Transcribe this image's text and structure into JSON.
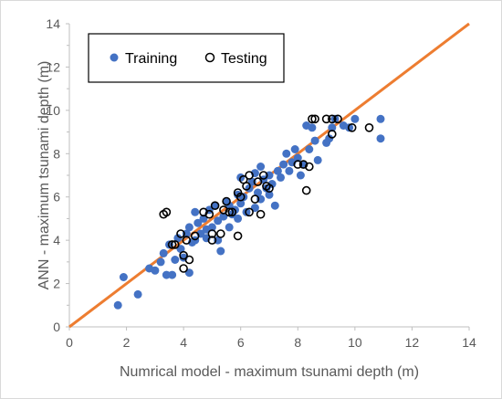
{
  "chart_data": {
    "type": "scatter",
    "title": "",
    "xlabel": "Numrical model - maximum tsunami depth (m)",
    "ylabel": "ANN - maximum tsunami depth (m)",
    "xlim": [
      0,
      14
    ],
    "ylim": [
      0,
      14
    ],
    "x_ticks": [
      "0",
      "2",
      "4",
      "6",
      "8",
      "10",
      "12",
      "14"
    ],
    "y_ticks": [
      "0",
      "2",
      "4",
      "6",
      "8",
      "10",
      "12",
      "14"
    ],
    "grid": false,
    "legend_position": "top-left",
    "reference_line": {
      "x": [
        0,
        14
      ],
      "y": [
        0,
        14
      ],
      "color": "#ED7D31"
    },
    "series": [
      {
        "name": "Training",
        "marker": "filled-circle",
        "color": "#4472C4",
        "points": [
          [
            1.7,
            1.0
          ],
          [
            1.9,
            2.3
          ],
          [
            2.4,
            1.5
          ],
          [
            2.8,
            2.7
          ],
          [
            3.0,
            2.6
          ],
          [
            3.2,
            3.0
          ],
          [
            3.3,
            3.4
          ],
          [
            3.4,
            2.4
          ],
          [
            3.5,
            3.8
          ],
          [
            3.6,
            2.4
          ],
          [
            3.7,
            3.1
          ],
          [
            3.8,
            4.1
          ],
          [
            3.9,
            3.6
          ],
          [
            4.0,
            3.2
          ],
          [
            4.1,
            4.3
          ],
          [
            4.2,
            4.6
          ],
          [
            4.2,
            2.5
          ],
          [
            4.3,
            3.9
          ],
          [
            4.4,
            4.0
          ],
          [
            4.5,
            4.8
          ],
          [
            4.6,
            4.3
          ],
          [
            4.7,
            5.0
          ],
          [
            4.8,
            4.1
          ],
          [
            4.9,
            5.4
          ],
          [
            5.0,
            4.6
          ],
          [
            5.1,
            5.6
          ],
          [
            5.2,
            4.9
          ],
          [
            5.3,
            3.5
          ],
          [
            5.4,
            5.1
          ],
          [
            5.5,
            5.8
          ],
          [
            5.6,
            4.6
          ],
          [
            5.6,
            5.6
          ],
          [
            5.7,
            5.2
          ],
          [
            5.8,
            5.4
          ],
          [
            5.9,
            6.1
          ],
          [
            5.9,
            5.0
          ],
          [
            6.0,
            5.7
          ],
          [
            6.1,
            6.0
          ],
          [
            6.2,
            5.3
          ],
          [
            6.3,
            6.4
          ],
          [
            6.4,
            6.7
          ],
          [
            6.5,
            5.5
          ],
          [
            6.5,
            7.1
          ],
          [
            6.6,
            6.2
          ],
          [
            6.7,
            5.9
          ],
          [
            6.8,
            6.8
          ],
          [
            6.9,
            6.4
          ],
          [
            7.0,
            7.0
          ],
          [
            7.1,
            6.6
          ],
          [
            7.2,
            5.6
          ],
          [
            7.3,
            7.2
          ],
          [
            7.4,
            6.9
          ],
          [
            7.5,
            7.5
          ],
          [
            7.6,
            8.0
          ],
          [
            7.7,
            7.2
          ],
          [
            7.8,
            7.6
          ],
          [
            7.9,
            8.2
          ],
          [
            8.0,
            7.8
          ],
          [
            8.1,
            7.0
          ],
          [
            8.2,
            7.5
          ],
          [
            8.3,
            9.3
          ],
          [
            8.4,
            8.2
          ],
          [
            8.5,
            9.2
          ],
          [
            8.6,
            8.6
          ],
          [
            8.7,
            7.7
          ],
          [
            9.0,
            8.5
          ],
          [
            9.1,
            8.7
          ],
          [
            9.2,
            9.2
          ],
          [
            9.3,
            9.6
          ],
          [
            9.6,
            9.3
          ],
          [
            9.8,
            9.2
          ],
          [
            10.0,
            9.6
          ],
          [
            10.9,
            9.6
          ],
          [
            10.9,
            8.7
          ],
          [
            4.4,
            5.3
          ],
          [
            5.2,
            4.0
          ],
          [
            6.0,
            6.9
          ],
          [
            6.7,
            7.4
          ],
          [
            7.0,
            6.1
          ],
          [
            4.8,
            4.5
          ]
        ]
      },
      {
        "name": "Testing",
        "marker": "hollow-circle",
        "color": "#000000",
        "points": [
          [
            3.3,
            5.2
          ],
          [
            3.4,
            5.3
          ],
          [
            3.6,
            3.8
          ],
          [
            3.7,
            3.8
          ],
          [
            3.9,
            4.3
          ],
          [
            4.0,
            3.3
          ],
          [
            4.0,
            2.7
          ],
          [
            4.1,
            4.0
          ],
          [
            4.2,
            3.1
          ],
          [
            4.4,
            4.2
          ],
          [
            4.7,
            5.3
          ],
          [
            5.0,
            4.3
          ],
          [
            5.0,
            4.0
          ],
          [
            5.1,
            5.6
          ],
          [
            5.3,
            4.3
          ],
          [
            5.4,
            5.4
          ],
          [
            5.5,
            5.8
          ],
          [
            5.6,
            5.3
          ],
          [
            5.7,
            5.3
          ],
          [
            5.9,
            4.2
          ],
          [
            5.9,
            6.2
          ],
          [
            6.0,
            6.0
          ],
          [
            6.1,
            6.8
          ],
          [
            6.2,
            6.5
          ],
          [
            6.3,
            7.0
          ],
          [
            6.3,
            5.3
          ],
          [
            6.5,
            5.9
          ],
          [
            6.6,
            6.7
          ],
          [
            6.7,
            5.2
          ],
          [
            6.9,
            6.5
          ],
          [
            7.0,
            6.4
          ],
          [
            8.0,
            7.5
          ],
          [
            8.2,
            7.5
          ],
          [
            8.3,
            6.3
          ],
          [
            8.4,
            7.4
          ],
          [
            8.5,
            9.6
          ],
          [
            8.6,
            9.6
          ],
          [
            9.0,
            9.6
          ],
          [
            9.2,
            8.9
          ],
          [
            9.2,
            9.6
          ],
          [
            9.4,
            9.6
          ],
          [
            9.9,
            9.2
          ],
          [
            10.5,
            9.2
          ],
          [
            6.8,
            7.0
          ],
          [
            4.9,
            5.2
          ]
        ]
      }
    ]
  }
}
